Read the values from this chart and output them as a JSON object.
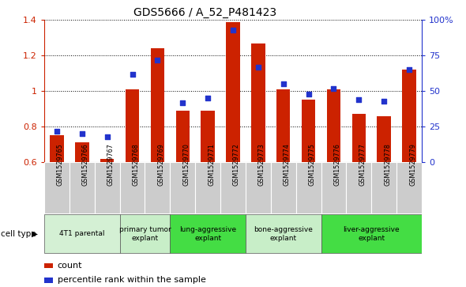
{
  "title": "GDS5666 / A_52_P481423",
  "samples": [
    "GSM1529765",
    "GSM1529766",
    "GSM1529767",
    "GSM1529768",
    "GSM1529769",
    "GSM1529770",
    "GSM1529771",
    "GSM1529772",
    "GSM1529773",
    "GSM1529774",
    "GSM1529775",
    "GSM1529776",
    "GSM1529777",
    "GSM1529778",
    "GSM1529779"
  ],
  "counts": [
    0.75,
    0.71,
    0.62,
    1.01,
    1.24,
    0.89,
    0.89,
    1.39,
    1.27,
    1.01,
    0.95,
    1.01,
    0.87,
    0.86,
    1.12
  ],
  "percentiles": [
    22,
    20,
    18,
    62,
    72,
    42,
    45,
    93,
    67,
    55,
    48,
    52,
    44,
    43,
    65
  ],
  "cell_types": [
    {
      "label": "4T1 parental",
      "start": 0,
      "end": 3
    },
    {
      "label": "primary tumor\nexplant",
      "start": 3,
      "end": 5
    },
    {
      "label": "lung-aggressive\nexplant",
      "start": 5,
      "end": 8
    },
    {
      "label": "bone-aggressive\nexplant",
      "start": 8,
      "end": 11
    },
    {
      "label": "liver-aggressive\nexplant",
      "start": 11,
      "end": 15
    }
  ],
  "cell_type_colors": [
    "#d4f0d4",
    "#c8eec8",
    "#44dd44",
    "#c8eec8",
    "#44dd44"
  ],
  "ylim_left": [
    0.6,
    1.4
  ],
  "ylim_right": [
    0,
    100
  ],
  "bar_color": "#cc2200",
  "dot_color": "#2233cc",
  "bg_color": "#ffffff",
  "label_bg": "#cccccc",
  "left_yticks": [
    0.6,
    0.8,
    1.0,
    1.2,
    1.4
  ],
  "left_yticklabels": [
    "0.6",
    "0.8",
    "1",
    "1.2",
    "1.4"
  ],
  "right_yticks": [
    0,
    25,
    50,
    75,
    100
  ],
  "right_yticklabels": [
    "0",
    "25",
    "50",
    "75",
    "100%"
  ]
}
